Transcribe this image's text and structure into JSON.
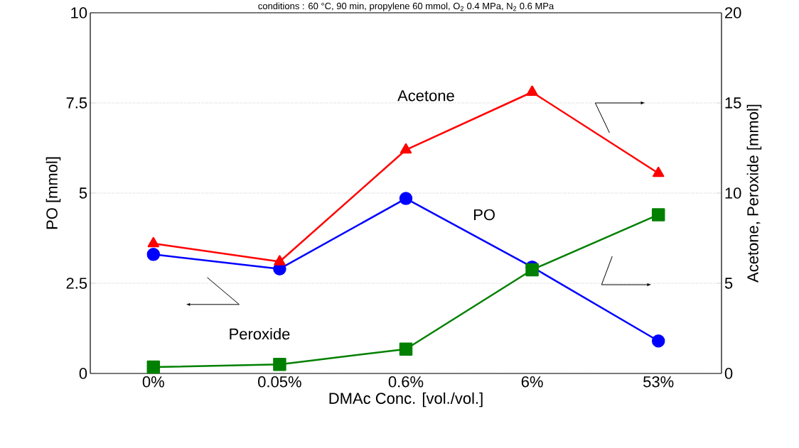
{
  "chart_data": {
    "type": "line",
    "subtitle": "conditions : 60 °C, 90 min, propylene 60 mmol, O$_{2}$ 0.4 MPa, N$_{2}$ 0.6 MPa",
    "categories": [
      "0%",
      "0.05%",
      "0.6%",
      "6%",
      "53%"
    ],
    "xlabel": "DMAc Conc. [vol./vol.]",
    "ylabel": "PO [mmol]",
    "y2label": "Acetone, Peroxide [mmol]",
    "ylim": [
      0,
      10
    ],
    "yticks": [
      0,
      2.5,
      5,
      7.5,
      10
    ],
    "y2lim": [
      0,
      20
    ],
    "y2ticks": [
      0,
      5,
      10,
      15,
      20
    ],
    "grid": "y",
    "series": [
      {
        "name": "Acetone",
        "color": "#ff0000",
        "marker": "triangle",
        "axis": "y2",
        "values": [
          7.2,
          6.2,
          12.4,
          15.6,
          11.1
        ]
      },
      {
        "name": "PO",
        "color": "#0000ff",
        "marker": "circle",
        "values": [
          3.3,
          2.9,
          4.85,
          2.95,
          0.9
        ]
      },
      {
        "name": "Peroxide",
        "color": "#008000",
        "marker": "square",
        "axis": "y2",
        "values": [
          0.35,
          0.5,
          1.35,
          5.75,
          8.8
        ]
      }
    ]
  }
}
